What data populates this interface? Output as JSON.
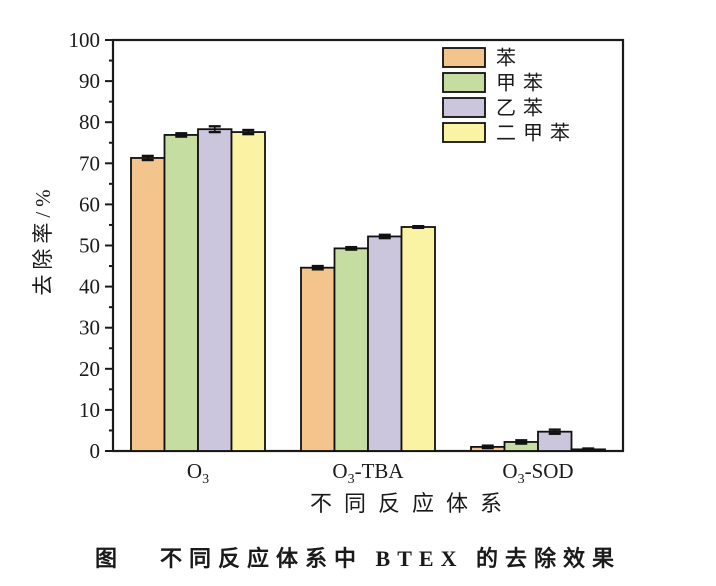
{
  "figure": {
    "caption_prefix": "图",
    "caption_text": "不同反应体系中 BTEX 的去除效果"
  },
  "chart_data": {
    "type": "bar",
    "title": "",
    "xlabel": "不同反应体系",
    "ylabel": "去除率/%",
    "ylim": [
      0,
      100
    ],
    "y_major_step": 10,
    "y_minor_step": 5,
    "grid": false,
    "legend_position": "top-right-inside",
    "axis_color": "#1a1a1a",
    "bar_border_color": "#111111",
    "categories": [
      {
        "pre": "O",
        "sub": "3",
        "post": ""
      },
      {
        "pre": "O",
        "sub": "3",
        "post": "-TBA"
      },
      {
        "pre": "O",
        "sub": "3",
        "post": "-SOD"
      }
    ],
    "category_plain": [
      "O3",
      "O3-TBA",
      "O3-SOD"
    ],
    "series": [
      {
        "name": "苯",
        "color": "#F3C48C",
        "values": [
          71.3,
          44.6,
          1.0
        ],
        "errors": [
          0.5,
          0.4,
          0.3
        ]
      },
      {
        "name": "甲苯",
        "color": "#C6DDA2",
        "values": [
          76.9,
          49.3,
          2.2
        ],
        "errors": [
          0.4,
          0.3,
          0.4
        ]
      },
      {
        "name": "乙苯",
        "color": "#CCC6DD",
        "values": [
          78.3,
          52.2,
          4.7
        ],
        "errors": [
          0.7,
          0.4,
          0.5
        ]
      },
      {
        "name": "二甲苯",
        "color": "#F9F3A3",
        "values": [
          77.6,
          54.5,
          0.4
        ],
        "errors": [
          0.5,
          0.2,
          0.2
        ]
      }
    ],
    "y_tick_labels": [
      "0",
      "10",
      "20",
      "30",
      "40",
      "50",
      "60",
      "70",
      "80",
      "90",
      "100"
    ]
  }
}
